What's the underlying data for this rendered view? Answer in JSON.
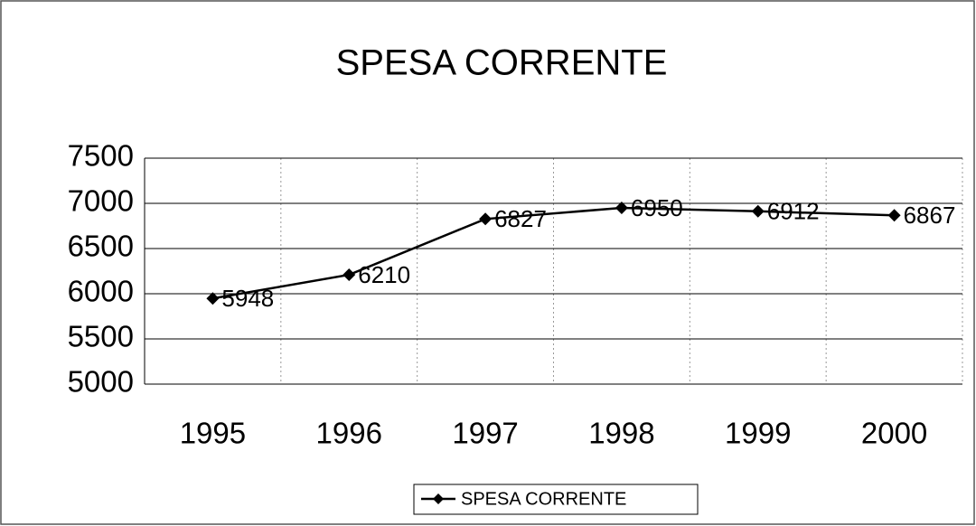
{
  "chart_data": {
    "type": "line",
    "title": "SPESA CORRENTE",
    "categories": [
      "1995",
      "1996",
      "1997",
      "1998",
      "1999",
      "2000"
    ],
    "series": [
      {
        "name": "SPESA CORRENTE",
        "color": "#000000",
        "values": [
          5948,
          6210,
          6827,
          6950,
          6912,
          6867
        ]
      }
    ],
    "ylim": [
      5000,
      7500
    ],
    "yticks": [
      5000,
      5500,
      6000,
      6500,
      7000,
      7500
    ],
    "grid": true,
    "legend": "bottom"
  }
}
